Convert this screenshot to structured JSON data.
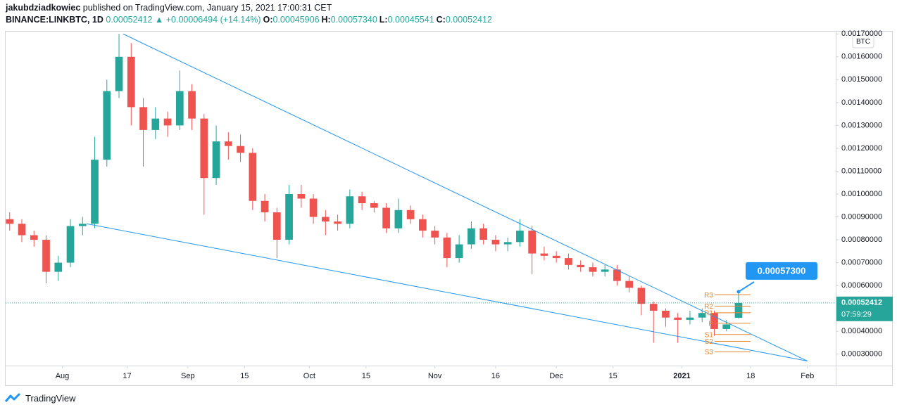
{
  "header": {
    "author": "jakubdziadkowiec",
    "published": "published on TradingView.com, January 15, 2021 17:00:31 CET",
    "symbol": "BINANCE:LINKBTC, 1D",
    "last": "0.00052412",
    "change": "▲ +0.00006494 (+14.14%)",
    "ohlc": [
      {
        "label": "O:",
        "value": "0.00045906"
      },
      {
        "label": "H:",
        "value": "0.00057340"
      },
      {
        "label": "L:",
        "value": "0.00045541"
      },
      {
        "label": "C:",
        "value": "0.00052412"
      }
    ]
  },
  "footer": "TradingView",
  "chart_data": {
    "type": "candlestick",
    "currency": "BTC",
    "up_color": "#26a69a",
    "down_color": "#ef5350",
    "x": [
      "2020-07-19",
      "2020-07-22",
      "2020-07-25",
      "2020-07-28",
      "2020-07-31",
      "2020-08-03",
      "2020-08-06",
      "2020-08-09",
      "2020-08-12",
      "2020-08-15",
      "2020-08-18",
      "2020-08-21",
      "2020-08-24",
      "2020-08-27",
      "2020-08-30",
      "2020-09-02",
      "2020-09-05",
      "2020-09-08",
      "2020-09-11",
      "2020-09-14",
      "2020-09-17",
      "2020-09-20",
      "2020-09-23",
      "2020-09-26",
      "2020-09-29",
      "2020-10-02",
      "2020-10-05",
      "2020-10-08",
      "2020-10-11",
      "2020-10-14",
      "2020-10-17",
      "2020-10-20",
      "2020-10-23",
      "2020-10-26",
      "2020-10-29",
      "2020-11-01",
      "2020-11-04",
      "2020-11-07",
      "2020-11-10",
      "2020-11-13",
      "2020-11-16",
      "2020-11-19",
      "2020-11-22",
      "2020-11-25",
      "2020-11-28",
      "2020-12-01",
      "2020-12-04",
      "2020-12-07",
      "2020-12-10",
      "2020-12-13",
      "2020-12-16",
      "2020-12-19",
      "2020-12-22",
      "2020-12-25",
      "2020-12-28",
      "2020-12-31",
      "2021-01-03",
      "2021-01-06",
      "2021-01-09",
      "2021-01-12",
      "2021-01-15"
    ],
    "open": [
      0.00089,
      0.00087,
      0.00082,
      0.0008,
      0.00066,
      0.0007,
      0.00086,
      0.00087,
      0.00115,
      0.00145,
      0.0016,
      0.00138,
      0.00128,
      0.00133,
      0.0013,
      0.00145,
      0.00133,
      0.00107,
      0.00123,
      0.00121,
      0.00118,
      0.00097,
      0.00092,
      0.0008,
      0.001,
      0.00098,
      0.0009,
      0.00088,
      0.00087,
      0.00099,
      0.00096,
      0.00094,
      0.00085,
      0.00093,
      0.00089,
      0.00084,
      0.00081,
      0.00072,
      0.00078,
      0.00085,
      0.0008,
      0.00078,
      0.00079,
      0.00084,
      0.00074,
      0.00073,
      0.00072,
      0.00069,
      0.00068,
      0.00066,
      0.00067,
      0.00062,
      0.00059,
      0.00052,
      0.00049,
      0.00046,
      0.00045,
      0.00046,
      0.00048,
      0.00041,
      0.00045906
    ],
    "high": [
      0.00092,
      0.00089,
      0.00084,
      0.00082,
      0.00073,
      0.00089,
      0.0009,
      0.00125,
      0.0015,
      0.0017,
      0.00166,
      0.00142,
      0.00138,
      0.00136,
      0.00154,
      0.00148,
      0.00135,
      0.0013,
      0.00127,
      0.00126,
      0.0012,
      0.001,
      0.00094,
      0.00104,
      0.00104,
      0.001,
      0.00093,
      0.00091,
      0.00102,
      0.00101,
      0.00097,
      0.00096,
      0.00098,
      0.00095,
      0.00091,
      0.00086,
      0.00083,
      0.00082,
      0.00088,
      0.00087,
      0.00082,
      0.00081,
      0.00089,
      0.00086,
      0.00077,
      0.00075,
      0.00074,
      0.00071,
      0.0007,
      0.00069,
      0.00069,
      0.00064,
      0.0006,
      0.00053,
      0.0005,
      0.00048,
      0.00049,
      0.0005,
      0.00049,
      0.00045,
      0.0005734
    ],
    "low": [
      0.00084,
      0.00079,
      0.00077,
      0.00061,
      0.00062,
      0.00068,
      0.00082,
      0.00085,
      0.00112,
      0.00142,
      0.0013,
      0.00112,
      0.00124,
      0.00125,
      0.00128,
      0.00128,
      0.00091,
      0.00104,
      0.00115,
      0.00114,
      0.00093,
      0.00088,
      0.00072,
      0.00078,
      0.00094,
      0.00087,
      0.00082,
      0.00084,
      0.00085,
      0.00093,
      0.00092,
      0.00083,
      0.00083,
      0.00087,
      0.00081,
      0.00078,
      0.00068,
      0.0007,
      0.00076,
      0.00078,
      0.00075,
      0.00075,
      0.00077,
      0.00065,
      0.00071,
      0.0007,
      0.00067,
      0.00066,
      0.00064,
      0.00064,
      0.0006,
      0.00057,
      0.00047,
      0.00035,
      0.00042,
      0.00035,
      0.00043,
      0.00044,
      0.00038,
      0.0004,
      0.00045541
    ],
    "close": [
      0.00087,
      0.00082,
      0.0008,
      0.00066,
      0.0007,
      0.00086,
      0.00087,
      0.00115,
      0.00145,
      0.0016,
      0.00138,
      0.00128,
      0.00133,
      0.0013,
      0.00145,
      0.00133,
      0.00107,
      0.00123,
      0.00121,
      0.00118,
      0.00097,
      0.00092,
      0.0008,
      0.001,
      0.00098,
      0.0009,
      0.00088,
      0.00087,
      0.00099,
      0.00096,
      0.00094,
      0.00085,
      0.00093,
      0.00089,
      0.00084,
      0.00081,
      0.00072,
      0.00078,
      0.00085,
      0.0008,
      0.00078,
      0.00079,
      0.00084,
      0.00074,
      0.00073,
      0.00072,
      0.00069,
      0.00068,
      0.00066,
      0.00067,
      0.00062,
      0.00059,
      0.00052,
      0.00049,
      0.00046,
      0.00045,
      0.00046,
      0.00048,
      0.00041,
      0.00043,
      0.00052412
    ],
    "xlim": [
      "2020-07-18",
      "2021-02-08"
    ],
    "xticks": [
      {
        "value": "2020-08-01",
        "label": "Aug"
      },
      {
        "value": "2020-08-17",
        "label": "17"
      },
      {
        "value": "2020-09-01",
        "label": "Sep"
      },
      {
        "value": "2020-09-15",
        "label": "15"
      },
      {
        "value": "2020-10-01",
        "label": "Oct"
      },
      {
        "value": "2020-10-15",
        "label": "15"
      },
      {
        "value": "2020-11-01",
        "label": "Nov"
      },
      {
        "value": "2020-11-16",
        "label": "16"
      },
      {
        "value": "2020-12-01",
        "label": "Dec"
      },
      {
        "value": "2020-12-15",
        "label": "15"
      },
      {
        "value": "2021-01-01",
        "label": "2021"
      },
      {
        "value": "2021-01-18",
        "label": "18"
      },
      {
        "value": "2021-02-01",
        "label": "Feb"
      }
    ],
    "ylim": [
      0.00025,
      0.00171
    ],
    "yticks": [
      {
        "value": 0.0003,
        "label": "0.00030000"
      },
      {
        "value": 0.0004,
        "label": "0.00040000"
      },
      {
        "value": 0.0005,
        "label": "0.00050000"
      },
      {
        "value": 0.0006,
        "label": "0.00060000"
      },
      {
        "value": 0.0007,
        "label": "0.00070000"
      },
      {
        "value": 0.0008,
        "label": "0.00080000"
      },
      {
        "value": 0.0009,
        "label": "0.00090000"
      },
      {
        "value": 0.001,
        "label": "0.00100000"
      },
      {
        "value": 0.0011,
        "label": "0.00110000"
      },
      {
        "value": 0.0012,
        "label": "0.00120000"
      },
      {
        "value": 0.0013,
        "label": "0.00130000"
      },
      {
        "value": 0.0014,
        "label": "0.00140000"
      },
      {
        "value": 0.0015,
        "label": "0.00150000"
      },
      {
        "value": 0.0016,
        "label": "0.00160000"
      },
      {
        "value": 0.0017,
        "label": "0.00170000"
      }
    ],
    "grid": false,
    "trendlines": [
      {
        "x": [
          "2020-08-16",
          "2021-02-01"
        ],
        "y": [
          0.0017,
          0.00027
        ],
        "color": "#2196f3"
      },
      {
        "x": [
          "2020-08-07",
          "2021-02-01"
        ],
        "y": [
          0.00087,
          0.00027
        ],
        "color": "#2196f3"
      }
    ],
    "pivots": {
      "x": [
        "2021-01-07",
        "2021-01-18"
      ],
      "color": "#e8852b",
      "levels": [
        {
          "name": "R3",
          "value": 0.00056
        },
        {
          "name": "R2",
          "value": 0.00051
        },
        {
          "name": "R1",
          "value": 0.000481
        },
        {
          "name": "P",
          "value": 0.000435
        },
        {
          "name": "S1",
          "value": 0.000386
        },
        {
          "name": "S2",
          "value": 0.000356
        },
        {
          "name": "S3",
          "value": 0.00031
        }
      ]
    },
    "callout": {
      "x": "2021-01-15",
      "value": 0.000573,
      "label": "0.00057300",
      "color": "#2196f3"
    },
    "last_price": {
      "value": 0.00052412,
      "label": "0.00052412",
      "countdown": "07:59:29",
      "color": "#26a69a"
    }
  }
}
